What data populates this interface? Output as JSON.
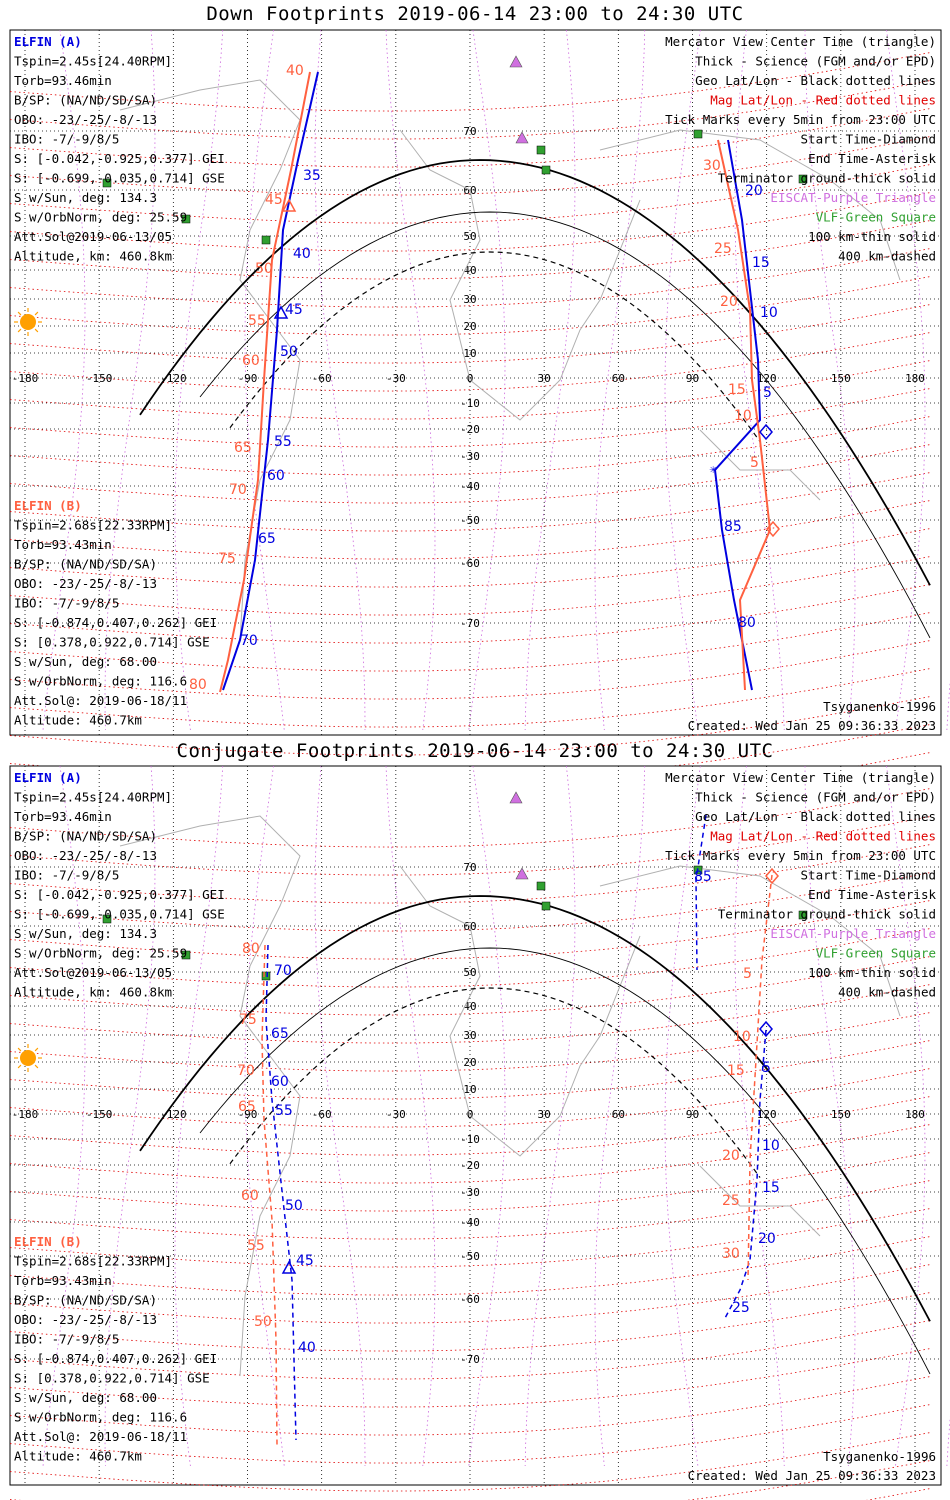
{
  "panels": [
    {
      "title": "Down Footprints 2019-06-14 23:00 to 24:30 UTC",
      "elfin_a": {
        "name": "ELFIN (A)",
        "lines": [
          "Tspin=2.45s[24.40RPM]",
          "Torb=93.46min",
          "B/SP: (NA/ND/SD/SA)",
          "OBO: -23/-25/-8/-13",
          "IBO: -7/-9/8/5",
          "S: [-0.042,-0.925,0.377] GEI",
          "S: [-0.699,-0.035,0.714] GSE",
          "S w/Sun, deg: 134.3",
          "S w/OrbNorm, deg: 25.59",
          "Att.Sol@2019-06-13/05",
          "Altitude, km: 460.8km"
        ]
      },
      "elfin_b": {
        "name": "ELFIN (B)",
        "lines": [
          "Tspin=2.68s[22.33RPM]",
          "Torb=93.43min",
          "B/SP: (NA/ND/SD/SA)",
          "OBO: -23/-25/-8/-13",
          "IBO: -7/-9/8/5",
          "S: [-0.874,0.407,0.262] GEI",
          "S: [0.378,0.922,0.714] GSE",
          "S w/Sun, deg: 68.00",
          "S w/OrbNorm, deg: 116.6",
          "Att.Sol@: 2019-06-18/11",
          "Altitude: 460.7km"
        ]
      },
      "legend": [
        "Mercator View Center Time (triangle)",
        "Thick - Science (FGM and/or EPD)",
        "Geo Lat/Lon - Black dotted lines",
        "Mag Lat/Lon - Red dotted lines",
        "Tick Marks every 5min from 23:00 UTC",
        "Start Time-Diamond",
        "End Time-Asterisk",
        "Terminator ground-thick solid",
        "EISCAT-Purple Triangle",
        "VLF-Green Square",
        "100 km-thin solid",
        "400 km-dashed"
      ],
      "model": "Tsyganenko-1996",
      "created": "Created: Wed Jan 25 09:36:33 2023",
      "traj_a_labels": [
        "35",
        "40",
        "45",
        "50",
        "55",
        "60",
        "65",
        "70"
      ],
      "traj_b_labels": [
        "40",
        "45",
        "50",
        "55",
        "60",
        "65",
        "70",
        "75",
        "80"
      ],
      "traj_a2_labels": [
        "20",
        "15",
        "10",
        "5",
        "85",
        "80"
      ],
      "traj_b2_labels": [
        "30",
        "25",
        "20",
        "15",
        "10",
        "5"
      ]
    },
    {
      "title": "Conjugate Footprints 2019-06-14 23:00 to 24:30 UTC",
      "elfin_a": {
        "name": "ELFIN (A)",
        "lines": [
          "Tspin=2.45s[24.40RPM]",
          "Torb=93.46min",
          "B/SP: (NA/ND/SD/SA)",
          "OBO: -23/-25/-8/-13",
          "IBO: -7/-9/8/5",
          "S: [-0.042,-0.925,0.377] GEI",
          "S: [-0.699,-0.035,0.714] GSE",
          "S w/Sun, deg: 134.3",
          "S w/OrbNorm, deg: 25.59",
          "Att.Sol@2019-06-13/05",
          "Altitude, km: 460.8km"
        ]
      },
      "elfin_b": {
        "name": "ELFIN (B)",
        "lines": [
          "Tspin=2.68s[22.33RPM]",
          "Torb=93.43min",
          "B/SP: (NA/ND/SD/SA)",
          "OBO: -23/-25/-8/-13",
          "IBO: -7/-9/8/5",
          "S: [-0.874,0.407,0.262] GEI",
          "S: [0.378,0.922,0.714] GSE",
          "S w/Sun, deg: 68.00",
          "S w/OrbNorm, deg: 116.6",
          "Att.Sol@: 2019-06-18/11",
          "Altitude: 460.7km"
        ]
      },
      "legend": [
        "Mercator View Center Time (triangle)",
        "Thick - Science (FGM and/or EPD)",
        "Geo Lat/Lon - Black dotted lines",
        "Mag Lat/Lon - Red dotted lines",
        "Tick Marks every 5min from 23:00 UTC",
        "Start Time-Diamond",
        "End Time-Asterisk",
        "Terminator ground-thick solid",
        "EISCAT-Purple Triangle",
        "VLF-Green Square",
        "100 km-thin solid",
        "400 km-dashed"
      ],
      "model": "Tsyganenko-1996",
      "created": "Created: Wed Jan 25 09:36:33 2023",
      "traj_a_labels": [
        "70",
        "65",
        "60",
        "55",
        "50",
        "45",
        "40"
      ],
      "traj_b_labels": [
        "80",
        "75",
        "70",
        "65",
        "60",
        "55",
        "50"
      ],
      "traj_a2_labels": [
        "85",
        "5",
        "10",
        "15",
        "20",
        "25"
      ],
      "traj_b2_labels": [
        "5",
        "10",
        "15",
        "20",
        "25",
        "30"
      ]
    }
  ],
  "lon_ticks": [
    "-180",
    "-150",
    "-120",
    "-90",
    "-60",
    "-30",
    "0",
    "30",
    "60",
    "90",
    "120",
    "150",
    "180"
  ],
  "lat_ticks": [
    "70",
    "60",
    "50",
    "40",
    "30",
    "20",
    "10",
    "0",
    "-10",
    "-20",
    "-30",
    "-40",
    "-50",
    "-60",
    "-70"
  ],
  "colors": {
    "elfin_a": "#0000e0",
    "elfin_b": "#ff6040",
    "eiscat": "#d070e0",
    "vlf": "#30a030",
    "sun": "#ffa000",
    "geo_grid": "#000000",
    "mag_grid": "#e00000"
  }
}
